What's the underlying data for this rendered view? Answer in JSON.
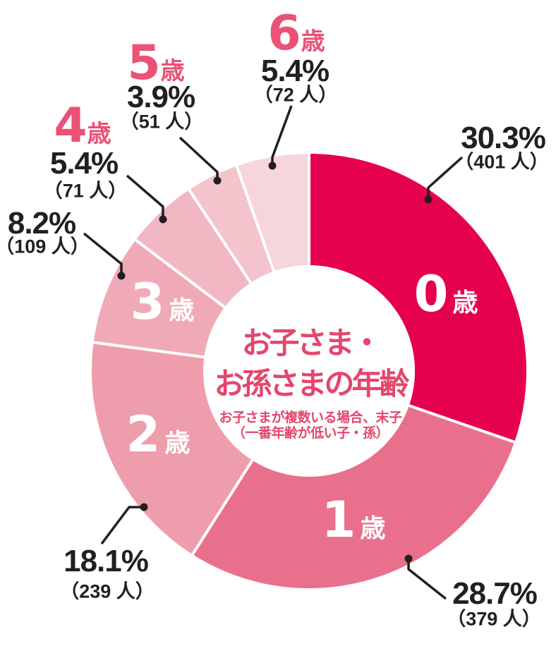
{
  "chart_data": {
    "type": "donut",
    "title_lines": [
      "お子さま・",
      "お孫さまの年齢"
    ],
    "subtitle_lines": [
      "お子さまが複数いる場合、末子",
      "（一番年齢が低い子・孫）"
    ],
    "start_angle_deg": 0,
    "direction": "clockwise",
    "inner_radius_ratio": 0.487,
    "legend": "none",
    "segments": [
      {
        "age_num": "0",
        "age_unit": "歳",
        "pct": 30.3,
        "count": 401,
        "pct_text": "30.3%",
        "count_text": "（401 人）",
        "color": "#e60050",
        "label_inside": true
      },
      {
        "age_num": "1",
        "age_unit": "歳",
        "pct": 28.7,
        "count": 379,
        "pct_text": "28.7%",
        "count_text": "（379 人）",
        "color": "#e9708d",
        "label_inside": true
      },
      {
        "age_num": "2",
        "age_unit": "歳",
        "pct": 18.1,
        "count": 239,
        "pct_text": "18.1%",
        "count_text": "（239 人）",
        "color": "#ee9dac",
        "label_inside": true
      },
      {
        "age_num": "3",
        "age_unit": "歳",
        "pct": 8.2,
        "count": 109,
        "pct_text": "8.2%",
        "count_text": "（109 人）",
        "color": "#f0aab7",
        "label_inside": true
      },
      {
        "age_num": "4",
        "age_unit": "歳",
        "pct": 5.4,
        "count": 71,
        "pct_text": "5.4%",
        "count_text": "（71 人）",
        "color": "#f1b8c3",
        "label_inside": false
      },
      {
        "age_num": "5",
        "age_unit": "歳",
        "pct": 3.9,
        "count": 51,
        "pct_text": "3.9%",
        "count_text": "（51 人）",
        "color": "#f3c4cc",
        "label_inside": false
      },
      {
        "age_num": "6",
        "age_unit": "歳",
        "pct": 5.4,
        "count": 72,
        "pct_text": "5.4%",
        "count_text": "（72 人）",
        "color": "#f6d6db",
        "label_inside": false
      }
    ],
    "colors": {
      "divider": "#ffffff",
      "leader_line": "#231f20",
      "pct_text": "#231f20",
      "age_accent": "#ea5278",
      "title": "#e4466c",
      "inside_label": "#ffffff",
      "background": "#ffffff"
    }
  }
}
